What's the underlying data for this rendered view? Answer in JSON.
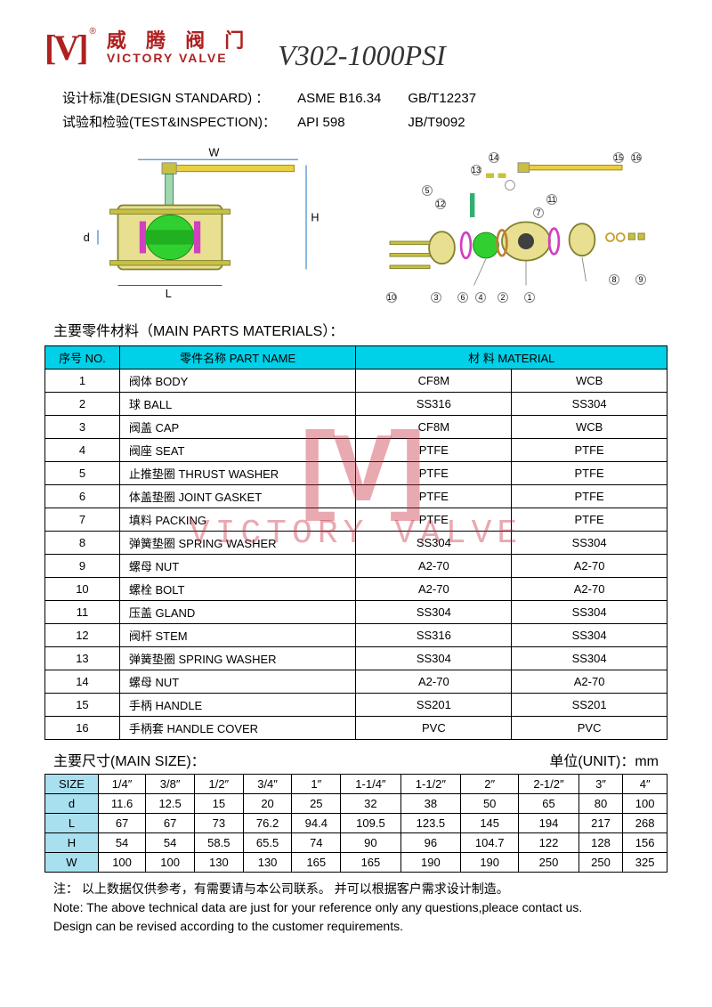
{
  "header": {
    "logo_bracket": "[V]",
    "logo_cn": "威 腾 阀 门",
    "logo_en": "VICTORY VALVE",
    "reg_mark": "®",
    "model": "V302-1000PSI"
  },
  "standards": {
    "design_label": "设计标准(DESIGN STANDARD) ：",
    "design_val1": "ASME B16.34",
    "design_val2": "GB/T12237",
    "test_label": "试验和检验(TEST&INSPECTION)：",
    "test_val1": "API 598",
    "test_val2": "JB/T9092"
  },
  "diagram_labels": {
    "W": "W",
    "H": "H",
    "L": "L",
    "d": "d"
  },
  "diagram_colors": {
    "body_fill": "#e8e090",
    "ball_fill": "#30d030",
    "seat_ring": "#d040c0",
    "handle": "#e8d040",
    "bolt": "#c8c040"
  },
  "parts_section_title": "主要零件材料（MAIN PARTS MATERIALS）：",
  "parts_header": {
    "no": "序号 NO.",
    "name": "零件名称 PART NAME",
    "material": "材 料  MATERIAL"
  },
  "parts_rows": [
    {
      "no": "1",
      "name": "阀体   BODY",
      "m1": "CF8M",
      "m2": "WCB"
    },
    {
      "no": "2",
      "name": "球     BALL",
      "m1": "SS316",
      "m2": "SS304"
    },
    {
      "no": "3",
      "name": "阀盖   CAP",
      "m1": "CF8M",
      "m2": "WCB"
    },
    {
      "no": "4",
      "name": "阀座   SEAT",
      "m1": "PTFE",
      "m2": "PTFE"
    },
    {
      "no": "5",
      "name": "止推垫圈 THRUST WASHER",
      "m1": "PTFE",
      "m2": "PTFE"
    },
    {
      "no": "6",
      "name": "体盖垫圈 JOINT GASKET",
      "m1": "PTFE",
      "m2": "PTFE"
    },
    {
      "no": "7",
      "name": "填料    PACKING",
      "m1": "PTFE",
      "m2": "PTFE"
    },
    {
      "no": "8",
      "name": "弹簧垫圈 SPRING WASHER",
      "m1": "SS304",
      "m2": "SS304"
    },
    {
      "no": "9",
      "name": "螺母   NUT",
      "m1": "A2-70",
      "m2": "A2-70"
    },
    {
      "no": "10",
      "name": "螺栓   BOLT",
      "m1": "A2-70",
      "m2": "A2-70"
    },
    {
      "no": "11",
      "name": "压盖    GLAND",
      "m1": "SS304",
      "m2": "SS304"
    },
    {
      "no": "12",
      "name": "阀杆   STEM",
      "m1": "SS316",
      "m2": "SS304"
    },
    {
      "no": "13",
      "name": "弹簧垫圈 SPRING WASHER",
      "m1": "SS304",
      "m2": "SS304"
    },
    {
      "no": "14",
      "name": "螺母   NUT",
      "m1": "A2-70",
      "m2": "A2-70"
    },
    {
      "no": "15",
      "name": "手柄   HANDLE",
      "m1": "SS201",
      "m2": "SS201"
    },
    {
      "no": "16",
      "name": "手柄套 HANDLE COVER",
      "m1": "PVC",
      "m2": "PVC"
    }
  ],
  "size_section_title": "主要尺寸(MAIN SIZE)：",
  "size_unit": "单位(UNIT)：mm",
  "size_headers": [
    "SIZE",
    "1/4″",
    "3/8″",
    "1/2″",
    "3/4″",
    "1″",
    "1-1/4″",
    "1-1/2″",
    "2″",
    "2-1/2″",
    "3″",
    "4″"
  ],
  "size_rows": [
    {
      "label": "d",
      "vals": [
        "11.6",
        "12.5",
        "15",
        "20",
        "25",
        "32",
        "38",
        "50",
        "65",
        "80",
        "100"
      ]
    },
    {
      "label": "L",
      "vals": [
        "67",
        "67",
        "73",
        "76.2",
        "94.4",
        "109.5",
        "123.5",
        "145",
        "194",
        "217",
        "268"
      ]
    },
    {
      "label": "H",
      "vals": [
        "54",
        "54",
        "58.5",
        "65.5",
        "74",
        "90",
        "96",
        "104.7",
        "122",
        "128",
        "156"
      ]
    },
    {
      "label": "W",
      "vals": [
        "100",
        "100",
        "130",
        "130",
        "165",
        "165",
        "190",
        "190",
        "250",
        "250",
        "325"
      ]
    }
  ],
  "notes": {
    "cn": "注：  以上数据仅供参考，有需要请与本公司联系。  并可以根据客户需求设计制造。",
    "en1": "Note:     The above technical data are just for your reference only any questions,pleace contact us.",
    "en2": "Design can be revised according to the customer requirements."
  },
  "watermark": {
    "v": "[V]",
    "txt": "VICTORY VALVE"
  }
}
